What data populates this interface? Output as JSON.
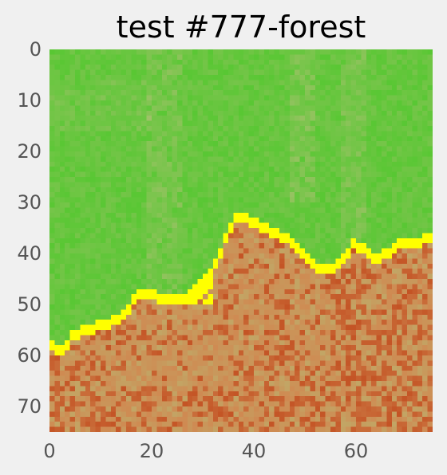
{
  "title": "test #777-forest",
  "x_ticks": [
    "0",
    "20",
    "40",
    "60"
  ],
  "y_ticks": [
    "0",
    "10",
    "20",
    "30",
    "40",
    "50",
    "60",
    "70"
  ],
  "grid": {
    "columns": 75,
    "rows": 75,
    "x_range": [
      0,
      74
    ],
    "y_range": [
      0,
      74
    ],
    "y_axis_direction": "downward"
  },
  "colors": {
    "forest": "#4cc82a",
    "forest_light": "#9fc268",
    "terrain_dark": "#c45425",
    "terrain_mid": "#cf8a52",
    "terrain_light": "#c2a565",
    "boundary": "#ffff00",
    "background": "#f0f0f0"
  },
  "boundary_profile": [
    [
      0,
      57
    ],
    [
      2,
      58
    ],
    [
      4,
      55
    ],
    [
      6,
      54
    ],
    [
      10,
      53
    ],
    [
      14,
      51
    ],
    [
      17,
      47
    ],
    [
      20,
      47
    ],
    [
      22,
      48
    ],
    [
      26,
      48
    ],
    [
      28,
      47
    ],
    [
      30,
      44
    ],
    [
      32,
      41
    ],
    [
      34,
      36
    ],
    [
      36,
      32
    ],
    [
      38,
      32
    ],
    [
      40,
      33
    ],
    [
      43,
      35
    ],
    [
      46,
      36
    ],
    [
      49,
      39
    ],
    [
      52,
      42
    ],
    [
      55,
      42
    ],
    [
      57,
      40
    ],
    [
      59,
      37
    ],
    [
      61,
      38
    ],
    [
      63,
      40
    ],
    [
      66,
      39
    ],
    [
      68,
      37
    ],
    [
      71,
      37
    ],
    [
      74,
      36
    ]
  ]
}
